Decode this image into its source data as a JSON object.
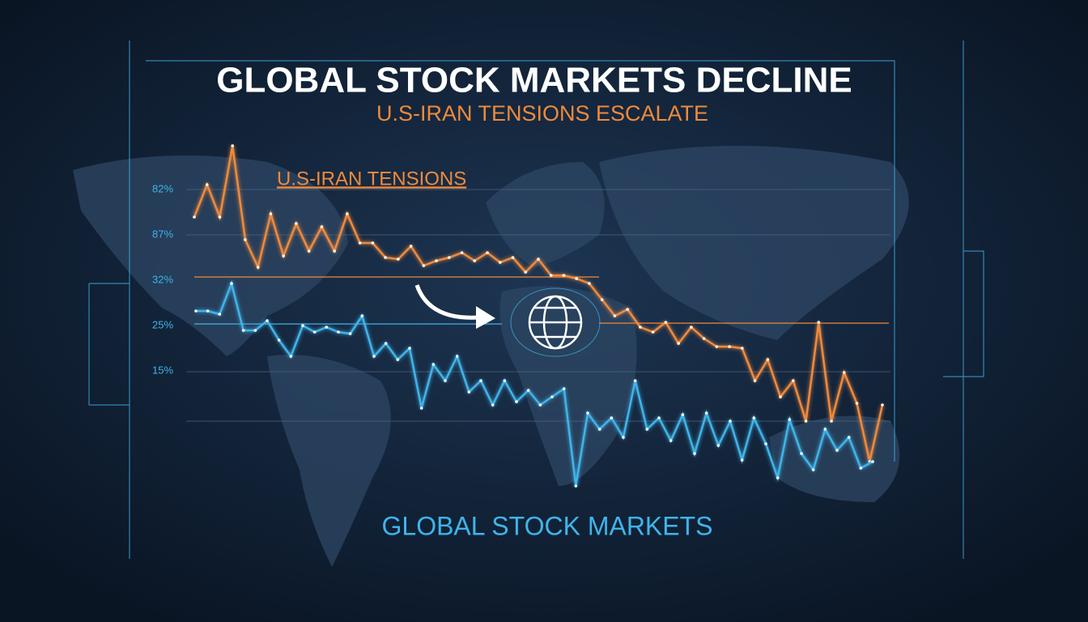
{
  "chart_data": {
    "type": "line",
    "title": "GLOBAL STOCK MARKETS DECLINE",
    "subtitle": "U.S-IRAN TENSIONS ESCALATE",
    "ylabels": [
      "82%",
      "87%",
      "32%",
      "25%",
      "15%"
    ],
    "ylim": [
      0,
      110
    ],
    "series": [
      {
        "name": "U.S-IRAN TENSIONS",
        "color": "#f08a3c",
        "values": [
          83,
          93,
          83,
          105,
          76,
          67.5,
          84,
          71,
          81,
          72.5,
          80,
          72.5,
          84,
          75,
          75,
          70.5,
          70,
          74,
          68,
          69.5,
          70.5,
          72,
          69.5,
          72,
          69,
          70.5,
          66,
          70,
          65,
          65,
          64,
          62.5,
          57.5,
          52.5,
          54.5,
          49,
          47.5,
          50.5,
          44,
          49,
          45.5,
          43,
          43,
          42.5,
          32.5,
          39,
          27.5,
          32.5,
          20,
          50.5,
          20,
          35,
          25.5,
          7.5,
          25
        ]
      },
      {
        "name": "GLOBAL STOCK MARKETS",
        "color": "#3fb4ea",
        "values": [
          54,
          54,
          53,
          62.5,
          48,
          48,
          51,
          45,
          40,
          49.5,
          47.5,
          49,
          47.5,
          47,
          52.5,
          40,
          44,
          39,
          42.5,
          24,
          37.5,
          32.5,
          40,
          29,
          32.5,
          25,
          32.5,
          26,
          29.5,
          25,
          27.5,
          30,
          0,
          22.5,
          17.5,
          21,
          15,
          32.5,
          17.5,
          21,
          14,
          22,
          10,
          22.5,
          12.5,
          20,
          8,
          21,
          13,
          2.5,
          20.5,
          10,
          5,
          17.5,
          11,
          15,
          5.5,
          7.5
        ]
      }
    ]
  }
}
